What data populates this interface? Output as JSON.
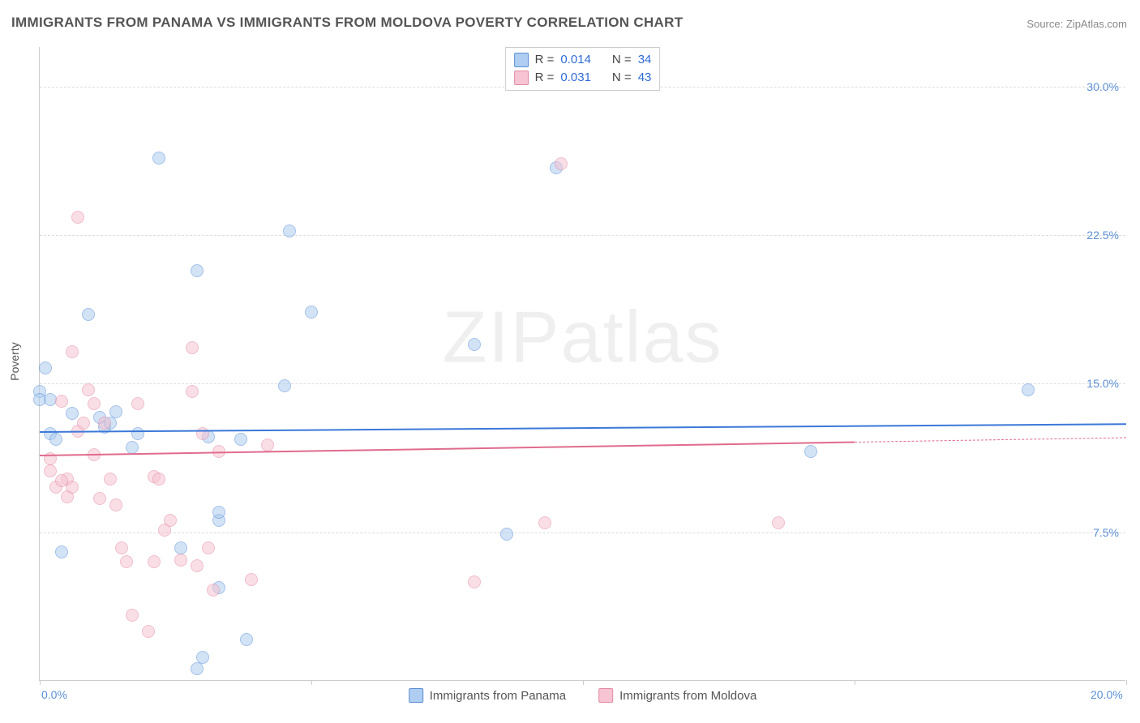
{
  "title": "IMMIGRANTS FROM PANAMA VS IMMIGRANTS FROM MOLDOVA POVERTY CORRELATION CHART",
  "source_label": "Source:",
  "source_name": "ZipAtlas.com",
  "watermark": "ZIPatlas",
  "chart": {
    "type": "scatter",
    "ylabel": "Poverty",
    "xlim": [
      0.0,
      20.0
    ],
    "ylim": [
      0.0,
      32.0
    ],
    "x_ticks": [
      0.0,
      5.0,
      10.0,
      15.0,
      20.0
    ],
    "x_tick_labels": [
      "0.0%",
      "",
      "",
      "",
      "20.0%"
    ],
    "y_gridlines": [
      7.5,
      15.0,
      22.5,
      30.0
    ],
    "y_tick_labels": [
      "7.5%",
      "15.0%",
      "22.5%",
      "30.0%"
    ],
    "grid_color": "#dddddd",
    "axis_color": "#cccccc",
    "background_color": "#ffffff",
    "tick_label_color": "#5b8fd6",
    "marker_radius": 8,
    "marker_border_width": 1.2,
    "series": [
      {
        "name": "Immigrants from Panama",
        "fill": "#aecdf0",
        "stroke": "#5b8fd6",
        "fill_opacity": 0.55,
        "R": "0.014",
        "N": "34",
        "trend": {
          "y_at_xmin": 12.6,
          "y_at_xmax": 13.0,
          "solid_until_x": 20.0,
          "color": "#3b78d8",
          "width": 2
        },
        "points": [
          [
            0.0,
            14.6
          ],
          [
            0.0,
            14.2
          ],
          [
            0.1,
            15.8
          ],
          [
            0.2,
            14.2
          ],
          [
            0.2,
            12.5
          ],
          [
            0.3,
            12.2
          ],
          [
            0.6,
            13.5
          ],
          [
            0.9,
            18.5
          ],
          [
            1.1,
            13.3
          ],
          [
            1.2,
            12.8
          ],
          [
            1.3,
            13.0
          ],
          [
            1.4,
            13.6
          ],
          [
            0.4,
            6.5
          ],
          [
            2.2,
            26.4
          ],
          [
            2.9,
            20.7
          ],
          [
            3.1,
            12.3
          ],
          [
            3.3,
            8.1
          ],
          [
            3.3,
            4.7
          ],
          [
            3.3,
            8.5
          ],
          [
            2.6,
            6.7
          ],
          [
            3.7,
            12.2
          ],
          [
            3.8,
            2.1
          ],
          [
            4.5,
            14.9
          ],
          [
            4.6,
            22.7
          ],
          [
            5.0,
            18.6
          ],
          [
            3.0,
            1.2
          ],
          [
            8.0,
            17.0
          ],
          [
            8.6,
            7.4
          ],
          [
            9.5,
            25.9
          ],
          [
            14.2,
            11.6
          ],
          [
            18.2,
            14.7
          ],
          [
            1.7,
            11.8
          ],
          [
            2.9,
            0.6
          ],
          [
            1.8,
            12.5
          ]
        ]
      },
      {
        "name": "Immigrants from Moldova",
        "fill": "#f6c4d2",
        "stroke": "#e28aa3",
        "fill_opacity": 0.55,
        "R": "0.031",
        "N": "43",
        "trend": {
          "y_at_xmin": 11.4,
          "y_at_xmax": 12.3,
          "solid_until_x": 15.0,
          "color": "#e06b8d",
          "width": 2
        },
        "points": [
          [
            0.2,
            11.2
          ],
          [
            0.2,
            10.6
          ],
          [
            0.3,
            9.8
          ],
          [
            0.4,
            14.1
          ],
          [
            0.5,
            10.2
          ],
          [
            0.5,
            9.3
          ],
          [
            0.6,
            16.6
          ],
          [
            0.6,
            9.8
          ],
          [
            0.7,
            12.6
          ],
          [
            0.7,
            23.4
          ],
          [
            0.8,
            13.0
          ],
          [
            0.9,
            14.7
          ],
          [
            1.0,
            14.0
          ],
          [
            1.0,
            11.4
          ],
          [
            1.1,
            9.2
          ],
          [
            1.2,
            13.0
          ],
          [
            1.3,
            10.2
          ],
          [
            1.4,
            8.9
          ],
          [
            1.5,
            6.7
          ],
          [
            1.6,
            6.0
          ],
          [
            1.7,
            3.3
          ],
          [
            1.8,
            14.0
          ],
          [
            2.0,
            2.5
          ],
          [
            2.1,
            6.0
          ],
          [
            2.1,
            10.3
          ],
          [
            2.2,
            10.2
          ],
          [
            2.3,
            7.6
          ],
          [
            2.4,
            8.1
          ],
          [
            2.8,
            16.8
          ],
          [
            2.8,
            14.6
          ],
          [
            2.9,
            5.8
          ],
          [
            2.6,
            6.1
          ],
          [
            3.0,
            12.5
          ],
          [
            3.1,
            6.7
          ],
          [
            3.2,
            4.6
          ],
          [
            3.3,
            11.6
          ],
          [
            3.9,
            5.1
          ],
          [
            4.2,
            11.9
          ],
          [
            8.0,
            5.0
          ],
          [
            9.3,
            8.0
          ],
          [
            9.6,
            26.1
          ],
          [
            13.6,
            8.0
          ],
          [
            0.4,
            10.1
          ]
        ]
      }
    ],
    "legend": {
      "R_label": "R =",
      "N_label": "N ="
    },
    "title_fontsize": 17,
    "label_fontsize": 14,
    "legend_fontsize": 15
  }
}
